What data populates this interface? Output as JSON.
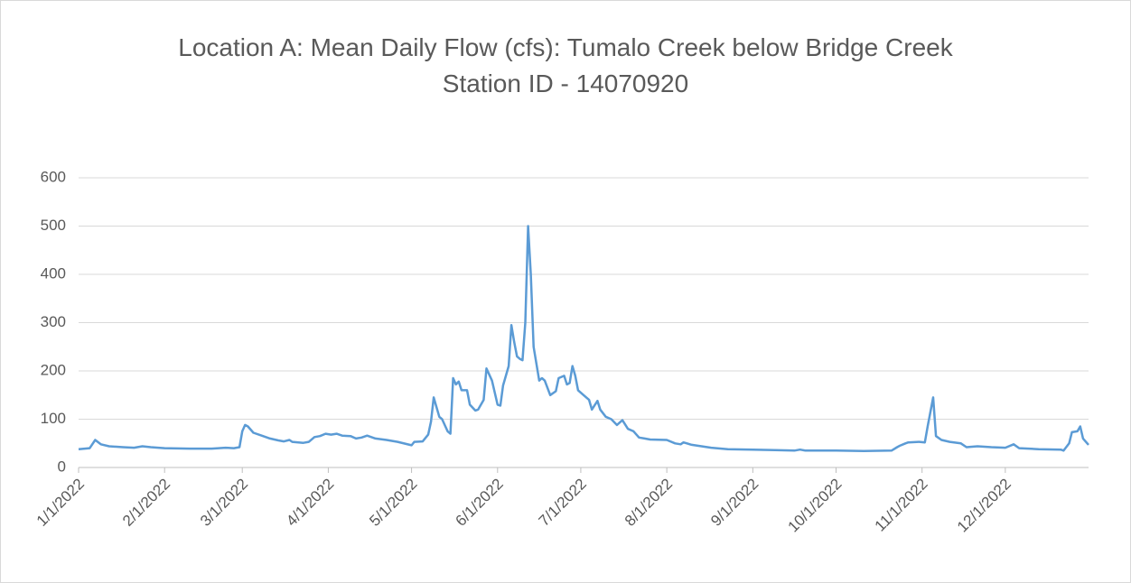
{
  "chart_data": {
    "type": "line",
    "title": "Location A: Mean Daily Flow (cfs): Tumalo Creek below Bridge Creek",
    "subtitle": "Station ID - 14070920",
    "x": [
      "1/1/2022",
      "1/5/2022",
      "1/7/2022",
      "1/9/2022",
      "1/12/2022",
      "1/17/2022",
      "1/21/2022",
      "1/24/2022",
      "1/27/2022",
      "2/1/2022",
      "2/10/2022",
      "2/18/2022",
      "2/23/2022",
      "2/26/2022",
      "2/28/2022",
      "3/1/2022",
      "3/2/2022",
      "3/3/2022",
      "3/5/2022",
      "3/8/2022",
      "3/11/2022",
      "3/14/2022",
      "3/16/2022",
      "3/18/2022",
      "3/19/2022",
      "3/23/2022",
      "3/25/2022",
      "3/27/2022",
      "3/29/2022",
      "3/31/2022",
      "4/2/2022",
      "4/4/2022",
      "4/6/2022",
      "4/9/2022",
      "4/11/2022",
      "4/13/2022",
      "4/15/2022",
      "4/18/2022",
      "4/22/2022",
      "4/26/2022",
      "5/1/2022",
      "5/2/2022",
      "5/5/2022",
      "5/7/2022",
      "5/8/2022",
      "5/9/2022",
      "5/11/2022",
      "5/12/2022",
      "5/14/2022",
      "5/15/2022",
      "5/16/2022",
      "5/17/2022",
      "5/18/2022",
      "5/19/2022",
      "5/21/2022",
      "5/22/2022",
      "5/24/2022",
      "5/25/2022",
      "5/27/2022",
      "5/28/2022",
      "5/30/2022",
      "6/1/2022",
      "6/2/2022",
      "6/3/2022",
      "6/5/2022",
      "6/6/2022",
      "6/7/2022",
      "6/8/2022",
      "6/9/2022",
      "6/10/2022",
      "6/11/2022",
      "6/12/2022",
      "6/13/2022",
      "6/14/2022",
      "6/16/2022",
      "6/17/2022",
      "6/18/2022",
      "6/20/2022",
      "6/22/2022",
      "6/23/2022",
      "6/25/2022",
      "6/26/2022",
      "6/27/2022",
      "6/28/2022",
      "6/29/2022",
      "6/30/2022",
      "7/2/2022",
      "7/4/2022",
      "7/5/2022",
      "7/7/2022",
      "7/8/2022",
      "7/10/2022",
      "7/12/2022",
      "7/14/2022",
      "7/16/2022",
      "7/18/2022",
      "7/20/2022",
      "7/22/2022",
      "7/24/2022",
      "7/26/2022",
      "8/1/2022",
      "8/4/2022",
      "8/6/2022",
      "8/7/2022",
      "8/10/2022",
      "8/17/2022",
      "8/23/2022",
      "9/1/2022",
      "9/9/2022",
      "9/16/2022",
      "9/18/2022",
      "9/20/2022",
      "10/1/2022",
      "10/11/2022",
      "10/21/2022",
      "10/23/2022",
      "10/24/2022",
      "10/26/2022",
      "10/27/2022",
      "10/31/2022",
      "11/2/2022",
      "11/3/2022",
      "11/5/2022",
      "11/6/2022",
      "11/8/2022",
      "11/11/2022",
      "11/15/2022",
      "11/17/2022",
      "11/21/2022",
      "11/26/2022",
      "12/1/2022",
      "12/4/2022",
      "12/6/2022",
      "12/13/2022",
      "12/21/2022",
      "12/22/2022",
      "12/24/2022",
      "12/25/2022",
      "12/27/2022",
      "12/28/2022",
      "12/29/2022",
      "12/31/2022"
    ],
    "series": [
      {
        "name": "Mean Daily Flow (cfs)",
        "color": "#5b9bd5",
        "values": [
          38,
          40,
          57,
          48,
          44,
          42,
          41,
          44,
          42,
          40,
          39,
          39,
          41,
          40,
          42,
          75,
          88,
          85,
          72,
          66,
          60,
          56,
          54,
          57,
          53,
          51,
          53,
          63,
          65,
          70,
          68,
          70,
          66,
          65,
          60,
          62,
          66,
          60,
          57,
          53,
          46,
          53,
          54,
          68,
          95,
          145,
          105,
          100,
          75,
          70,
          185,
          172,
          178,
          160,
          160,
          130,
          118,
          120,
          140,
          205,
          180,
          130,
          128,
          170,
          210,
          295,
          260,
          230,
          225,
          222,
          300,
          500,
          400,
          250,
          180,
          185,
          180,
          150,
          158,
          185,
          190,
          172,
          175,
          210,
          190,
          160,
          150,
          140,
          120,
          138,
          120,
          105,
          100,
          88,
          98,
          80,
          75,
          62,
          60,
          58,
          57,
          50,
          48,
          52,
          47,
          41,
          38,
          37,
          36,
          35,
          37,
          35,
          35,
          34,
          35,
          42,
          45,
          50,
          52,
          53,
          52,
          85,
          145,
          65,
          57,
          53,
          50,
          42,
          44,
          42,
          41,
          48,
          40,
          38,
          37,
          35,
          50,
          73,
          75,
          85,
          60,
          47
        ]
      }
    ],
    "xlim": [
      "1/1/2022",
      "12/31/2022"
    ],
    "xticks": [
      "1/1/2022",
      "2/1/2022",
      "3/1/2022",
      "4/1/2022",
      "5/1/2022",
      "6/1/2022",
      "7/1/2022",
      "8/1/2022",
      "9/1/2022",
      "10/1/2022",
      "11/1/2022",
      "12/1/2022"
    ],
    "ylim": [
      0,
      600
    ],
    "yticks": [
      0,
      100,
      200,
      300,
      400,
      500,
      600
    ],
    "grid": true
  }
}
